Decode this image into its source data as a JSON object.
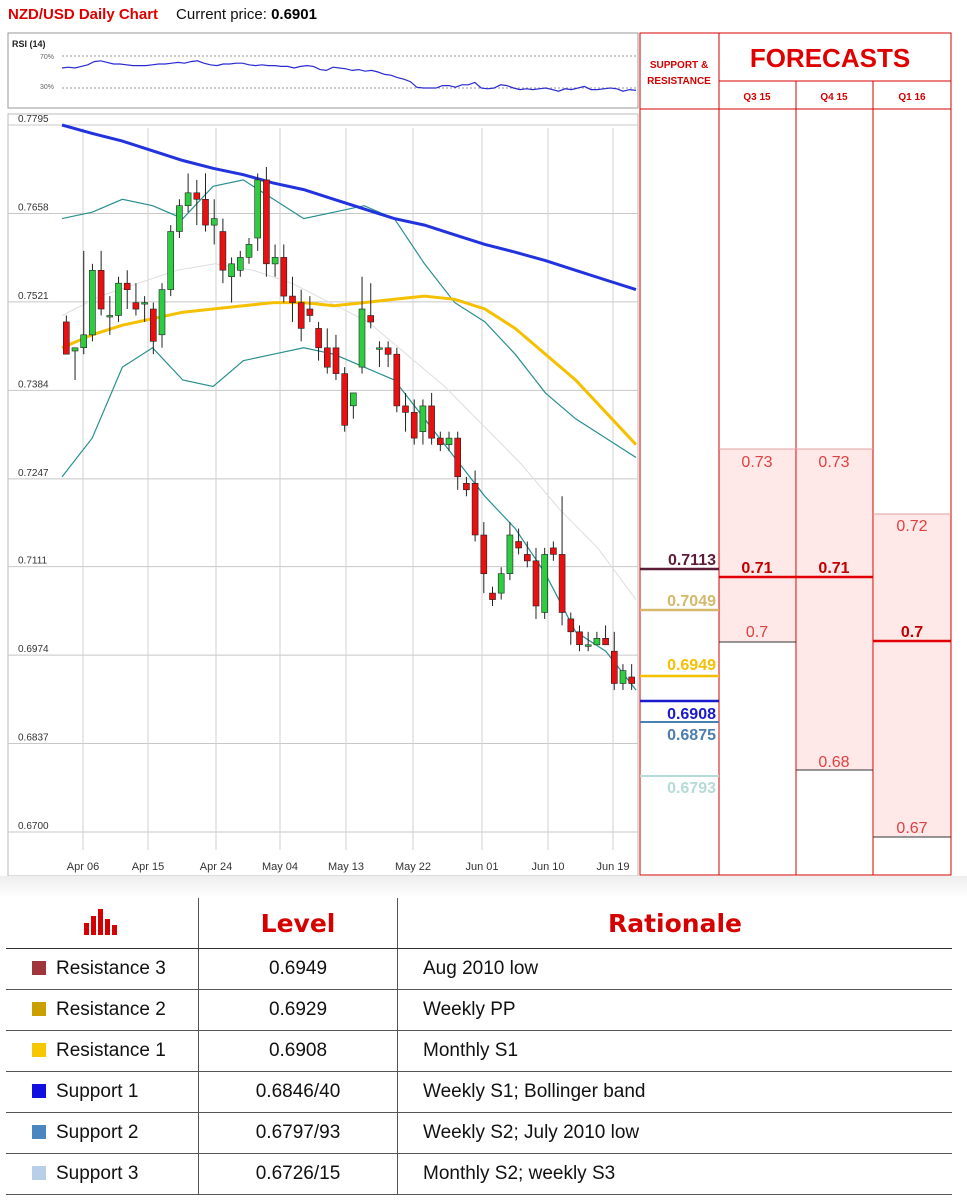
{
  "header": {
    "title": "NZD/USD Daily Chart",
    "price_label": "Current price:",
    "price": "0.6901"
  },
  "colors": {
    "bull": "#2ecc40",
    "bear": "#e81010",
    "ma_long": "#2233dd",
    "ma_mid": "#f5c000",
    "bollinger": "#2a8f8f",
    "middle_band": "#dddddd",
    "forecast_fill": "#ffe8e8",
    "accent_red": "#e00000"
  },
  "rsi": {
    "label": "RSI (14)",
    "levels": [
      "70%",
      "30%"
    ],
    "values": [
      55,
      56,
      55,
      57,
      59,
      63,
      64,
      62,
      60,
      60,
      59,
      58,
      58,
      58,
      59,
      60,
      60,
      61,
      62,
      61,
      63,
      64,
      61,
      59,
      58,
      60,
      60,
      61,
      61,
      59,
      58,
      59,
      58,
      58,
      57,
      57,
      55,
      57,
      58,
      57,
      53,
      52,
      56,
      55,
      54,
      52,
      53,
      51,
      52,
      50,
      47,
      46,
      43,
      41,
      38,
      31,
      30,
      30,
      30,
      33,
      33,
      31,
      34,
      34,
      37,
      30,
      29,
      30,
      34,
      33,
      30,
      28,
      29,
      28,
      29,
      30,
      28,
      26,
      29,
      28,
      30,
      32,
      28,
      28,
      29,
      30,
      29,
      26,
      28,
      27
    ]
  },
  "chart_data": {
    "type": "candlestick",
    "title": "NZD/USD Daily Chart",
    "y_ticks": [
      "0.7795",
      "0.7658",
      "0.7521",
      "0.7384",
      "0.7247",
      "0.7111",
      "0.6974",
      "0.6837",
      "0.6700"
    ],
    "x_ticks": [
      "Apr 06",
      "Apr 15",
      "Apr 24",
      "May 04",
      "May 13",
      "May 22",
      "Jun 01",
      "Jun 10",
      "Jun 19"
    ],
    "ylim": [
      0.668,
      0.7815
    ],
    "grid": true,
    "candles": [
      [
        0.749,
        0.75,
        0.7445,
        0.744
      ],
      [
        0.7445,
        0.745,
        0.74,
        0.745
      ],
      [
        0.745,
        0.76,
        0.744,
        0.747
      ],
      [
        0.747,
        0.758,
        0.746,
        0.757
      ],
      [
        0.757,
        0.76,
        0.75,
        0.751
      ],
      [
        0.75,
        0.753,
        0.747,
        0.75
      ],
      [
        0.75,
        0.756,
        0.749,
        0.755
      ],
      [
        0.755,
        0.757,
        0.751,
        0.754
      ],
      [
        0.752,
        0.755,
        0.75,
        0.751
      ],
      [
        0.752,
        0.753,
        0.749,
        0.752
      ],
      [
        0.751,
        0.752,
        0.744,
        0.746
      ],
      [
        0.747,
        0.755,
        0.745,
        0.754
      ],
      [
        0.754,
        0.764,
        0.753,
        0.763
      ],
      [
        0.763,
        0.768,
        0.762,
        0.767
      ],
      [
        0.767,
        0.772,
        0.766,
        0.769
      ],
      [
        0.769,
        0.771,
        0.764,
        0.768
      ],
      [
        0.768,
        0.772,
        0.763,
        0.764
      ],
      [
        0.764,
        0.768,
        0.761,
        0.765
      ],
      [
        0.763,
        0.765,
        0.755,
        0.757
      ],
      [
        0.756,
        0.759,
        0.752,
        0.758
      ],
      [
        0.757,
        0.76,
        0.756,
        0.759
      ],
      [
        0.759,
        0.762,
        0.758,
        0.761
      ],
      [
        0.762,
        0.772,
        0.76,
        0.771
      ],
      [
        0.771,
        0.773,
        0.756,
        0.758
      ],
      [
        0.758,
        0.761,
        0.756,
        0.759
      ],
      [
        0.759,
        0.761,
        0.752,
        0.753
      ],
      [
        0.753,
        0.756,
        0.749,
        0.752
      ],
      [
        0.752,
        0.754,
        0.746,
        0.748
      ],
      [
        0.751,
        0.753,
        0.749,
        0.75
      ],
      [
        0.748,
        0.749,
        0.743,
        0.745
      ],
      [
        0.745,
        0.748,
        0.741,
        0.742
      ],
      [
        0.745,
        0.747,
        0.74,
        0.741
      ],
      [
        0.741,
        0.742,
        0.732,
        0.733
      ],
      [
        0.736,
        0.738,
        0.734,
        0.738
      ],
      [
        0.742,
        0.756,
        0.741,
        0.751
      ],
      [
        0.75,
        0.755,
        0.748,
        0.749
      ],
      [
        0.745,
        0.746,
        0.742,
        0.745
      ],
      [
        0.745,
        0.746,
        0.742,
        0.744
      ],
      [
        0.744,
        0.745,
        0.735,
        0.736
      ],
      [
        0.736,
        0.738,
        0.732,
        0.735
      ],
      [
        0.735,
        0.737,
        0.73,
        0.731
      ],
      [
        0.732,
        0.737,
        0.73,
        0.736
      ],
      [
        0.736,
        0.738,
        0.73,
        0.731
      ],
      [
        0.731,
        0.732,
        0.729,
        0.73
      ],
      [
        0.73,
        0.732,
        0.729,
        0.731
      ],
      [
        0.731,
        0.732,
        0.723,
        0.725
      ],
      [
        0.724,
        0.725,
        0.722,
        0.723
      ],
      [
        0.724,
        0.726,
        0.715,
        0.716
      ],
      [
        0.716,
        0.718,
        0.707,
        0.71
      ],
      [
        0.707,
        0.708,
        0.705,
        0.706
      ],
      [
        0.707,
        0.711,
        0.706,
        0.71
      ],
      [
        0.71,
        0.718,
        0.709,
        0.716
      ],
      [
        0.715,
        0.717,
        0.713,
        0.714
      ],
      [
        0.713,
        0.715,
        0.711,
        0.712
      ],
      [
        0.712,
        0.714,
        0.703,
        0.705
      ],
      [
        0.704,
        0.714,
        0.703,
        0.713
      ],
      [
        0.714,
        0.715,
        0.712,
        0.713
      ],
      [
        0.713,
        0.722,
        0.702,
        0.704
      ],
      [
        0.703,
        0.704,
        0.699,
        0.701
      ],
      [
        0.701,
        0.702,
        0.698,
        0.699
      ],
      [
        0.699,
        0.701,
        0.698,
        0.699
      ],
      [
        0.699,
        0.701,
        0.699,
        0.7
      ],
      [
        0.7,
        0.702,
        0.699,
        0.699
      ],
      [
        0.698,
        0.701,
        0.692,
        0.693
      ],
      [
        0.693,
        0.696,
        0.692,
        0.695
      ],
      [
        0.694,
        0.696,
        0.692,
        0.693
      ]
    ],
    "ma_long": [
      0.7795,
      0.7782,
      0.777,
      0.7755,
      0.774,
      0.7728,
      0.7718,
      0.7705,
      0.7695,
      0.768,
      0.7665,
      0.765,
      0.764,
      0.7625,
      0.761,
      0.7598,
      0.7585,
      0.757,
      0.7555,
      0.754
    ],
    "ma_mid": [
      0.745,
      0.747,
      0.7485,
      0.7495,
      0.7505,
      0.751,
      0.7515,
      0.752,
      0.752,
      0.7515,
      0.752,
      0.7525,
      0.753,
      0.7525,
      0.751,
      0.748,
      0.744,
      0.74,
      0.735,
      0.73
    ],
    "bb_upper": [
      0.765,
      0.766,
      0.768,
      0.767,
      0.765,
      0.77,
      0.771,
      0.768,
      0.765,
      0.766,
      0.767,
      0.765,
      0.758,
      0.752,
      0.749,
      0.744,
      0.738,
      0.734,
      0.731,
      0.728
    ],
    "bb_lower": [
      0.725,
      0.731,
      0.742,
      0.745,
      0.74,
      0.739,
      0.743,
      0.744,
      0.745,
      0.744,
      0.742,
      0.74,
      0.734,
      0.728,
      0.722,
      0.717,
      0.71,
      0.701,
      0.698,
      0.692
    ],
    "bb_middle": [
      0.75,
      0.753,
      0.755,
      0.757,
      0.758,
      0.757,
      0.755,
      0.752,
      0.749,
      0.744,
      0.739,
      0.733,
      0.727,
      0.72,
      0.714,
      0.706
    ]
  },
  "support_resistance": {
    "header": "SUPPORT & RESISTANCE",
    "levels": [
      {
        "value": "0.7113",
        "color": "#5c1d36"
      },
      {
        "value": "0.7049",
        "color": "#d6b86a"
      },
      {
        "value": "0.6949",
        "color": "#f5c000"
      },
      {
        "value": "0.6908",
        "color": "#1a1acc"
      },
      {
        "value": "0.6875",
        "color": "#4a7fb0"
      },
      {
        "value": "0.6793",
        "color": "#b6dbd6"
      }
    ]
  },
  "forecasts": {
    "title": "FORECASTS",
    "quarters": [
      {
        "label": "Q3 15",
        "high": "0.73",
        "mid": "0.71",
        "low": "0.7"
      },
      {
        "label": "Q4 15",
        "high": "0.73",
        "mid": "0.71",
        "low": "0.68"
      },
      {
        "label": "Q1 16",
        "high": "0.72",
        "mid": "0.7",
        "low": "0.67"
      }
    ]
  },
  "levels_table": {
    "headers": {
      "level": "Level",
      "rationale": "Rationale"
    },
    "rows": [
      {
        "name": "Resistance 3",
        "level": "0.6949",
        "rationale": "Aug 2010 low",
        "color": "#a0353a"
      },
      {
        "name": "Resistance 2",
        "level": "0.6929",
        "rationale": "Weekly PP",
        "color": "#c9a000"
      },
      {
        "name": "Resistance 1",
        "level": "0.6908",
        "rationale": "Monthly S1",
        "color": "#f5c800"
      },
      {
        "name": "Support 1",
        "level": "0.6846/40",
        "rationale": "Weekly S1; Bollinger band",
        "color": "#1010e0"
      },
      {
        "name": "Support 2",
        "level": "0.6797/93",
        "rationale": "Weekly S2; July 2010 low",
        "color": "#4a86c0"
      },
      {
        "name": "Support 3",
        "level": "0.6726/15",
        "rationale": "Monthly S2; weekly S3",
        "color": "#b8cfe8"
      }
    ]
  }
}
